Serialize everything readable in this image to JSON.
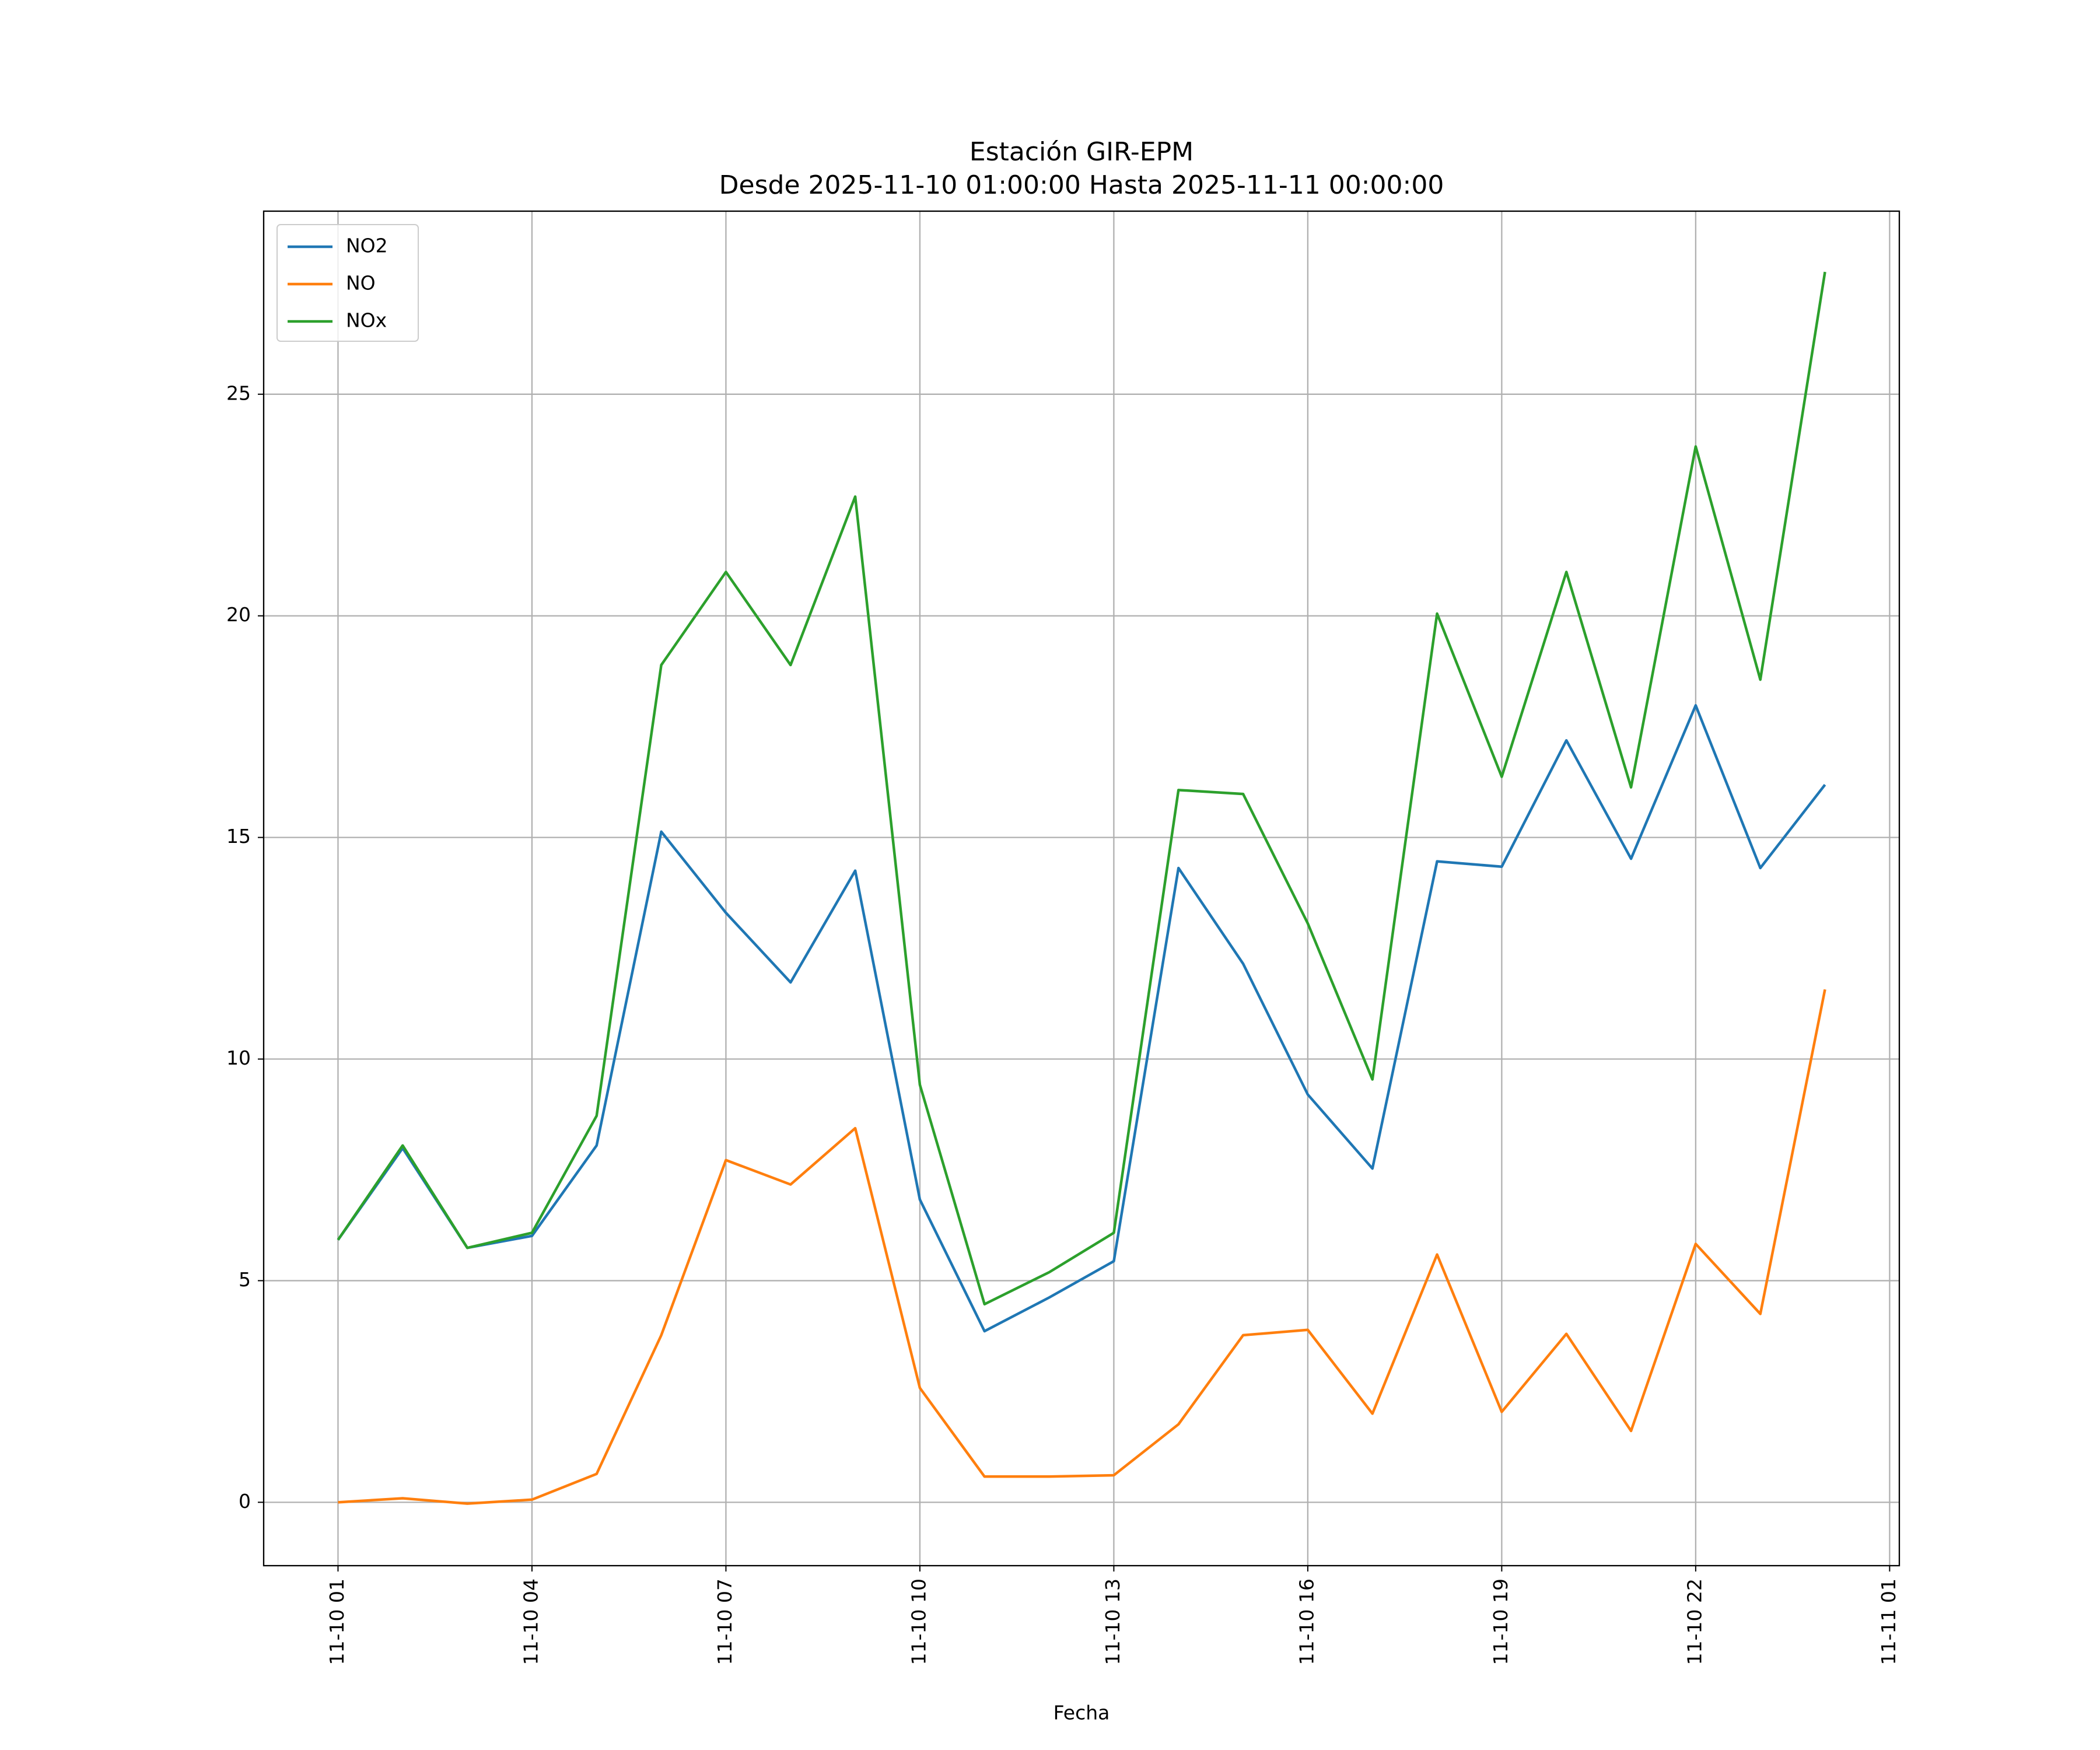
{
  "chart_data": {
    "type": "line",
    "title": "Estación GIR-EPM",
    "subtitle": "Desde 2025-11-10 01:00:00 Hasta 2025-11-11 00:00:00",
    "x_label": "Fecha",
    "x": [
      "11-10 01",
      "11-10 02",
      "11-10 03",
      "11-10 04",
      "11-10 05",
      "11-10 06",
      "11-10 07",
      "11-10 08",
      "11-10 09",
      "11-10 10",
      "11-10 11",
      "11-10 12",
      "11-10 13",
      "11-10 14",
      "11-10 15",
      "11-10 16",
      "11-10 17",
      "11-10 18",
      "11-10 19",
      "11-10 20",
      "11-10 21",
      "11-10 22",
      "11-10 23",
      "11-11 00"
    ],
    "series": [
      {
        "name": "NO2",
        "color": "#1f77b4",
        "values": [
          5.92,
          7.99,
          5.74,
          6.01,
          8.05,
          15.13,
          13.3,
          11.73,
          14.25,
          6.83,
          3.86,
          4.62,
          5.44,
          14.31,
          12.15,
          9.2,
          7.53,
          14.46,
          14.34,
          17.19,
          14.52,
          17.98,
          14.31,
          16.19
        ]
      },
      {
        "name": "NO",
        "color": "#ff7f0e",
        "values": [
          0.0,
          0.09,
          -0.03,
          0.06,
          0.64,
          3.77,
          7.72,
          7.17,
          8.44,
          2.58,
          0.58,
          0.58,
          0.61,
          1.76,
          3.77,
          3.89,
          2.0,
          5.59,
          2.04,
          3.8,
          1.61,
          5.83,
          4.25,
          11.57
        ]
      },
      {
        "name": "NOx",
        "color": "#2ca02c",
        "values": [
          5.92,
          8.05,
          5.74,
          6.08,
          8.72,
          18.89,
          20.99,
          18.89,
          22.69,
          9.42,
          4.47,
          5.19,
          6.08,
          16.07,
          15.98,
          13.06,
          9.54,
          20.05,
          16.37,
          20.99,
          16.13,
          23.82,
          18.56,
          27.76
        ]
      }
    ],
    "xlim": [
      "11-09 23:51",
      "11-11 01:09"
    ],
    "xticks": [
      "11-10 01",
      "11-10 04",
      "11-10 07",
      "11-10 10",
      "11-10 13",
      "11-10 16",
      "11-10 19",
      "11-10 22",
      "11-11 01"
    ],
    "ylim": [
      -1.43,
      29.13
    ],
    "yticks": [
      0,
      5,
      10,
      15,
      20,
      25
    ],
    "grid": true,
    "legend": "upper left"
  }
}
